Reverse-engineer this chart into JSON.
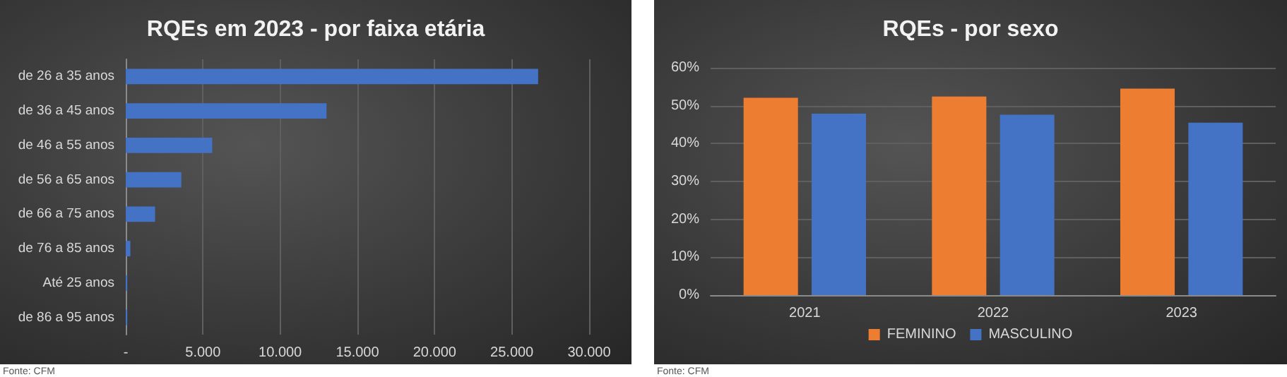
{
  "chart_data": [
    {
      "type": "bar",
      "title": "RQEs em 2023 - por faixa etária",
      "orientation": "horizontal",
      "categories": [
        "de 26 a 35 anos",
        "de 36 a 45 anos",
        "de 46 a 55 anos",
        "de 56 a 65 anos",
        "de 66 a 75 anos",
        "de 76 a 85 anos",
        "Até 25 anos",
        "de 86 a 95 anos"
      ],
      "values": [
        26700,
        13000,
        5600,
        3600,
        1900,
        300,
        100,
        100
      ],
      "color": "#4472c4",
      "xlim": [
        0,
        30000
      ],
      "xticks": [
        {
          "value": 0,
          "label": "-"
        },
        {
          "value": 5000,
          "label": "5.000"
        },
        {
          "value": 10000,
          "label": "10.000"
        },
        {
          "value": 15000,
          "label": "15.000"
        },
        {
          "value": 20000,
          "label": "20.000"
        },
        {
          "value": 25000,
          "label": "25.000"
        },
        {
          "value": 30000,
          "label": "30.000"
        }
      ],
      "grid": "x",
      "legend": false,
      "annotations": [
        "Fonte: CFM"
      ]
    },
    {
      "type": "bar",
      "title": "RQEs - por sexo",
      "categories": [
        "2021",
        "2022",
        "2023"
      ],
      "series": [
        {
          "name": "FEMININO",
          "color": "#ed7d31",
          "values": [
            52.1,
            52.4,
            54.5
          ]
        },
        {
          "name": "MASCULINO",
          "color": "#4472c4",
          "values": [
            47.9,
            47.6,
            45.5
          ]
        }
      ],
      "ylim": [
        0,
        60
      ],
      "yticks": [
        {
          "value": 0,
          "label": "0%"
        },
        {
          "value": 10,
          "label": "10%"
        },
        {
          "value": 20,
          "label": "20%"
        },
        {
          "value": 30,
          "label": "30%"
        },
        {
          "value": 40,
          "label": "40%"
        },
        {
          "value": 50,
          "label": "50%"
        },
        {
          "value": 60,
          "label": "60%"
        }
      ],
      "grid": "y",
      "legend": "bottom",
      "annotations": [
        "Fonte: CFM"
      ]
    }
  ]
}
